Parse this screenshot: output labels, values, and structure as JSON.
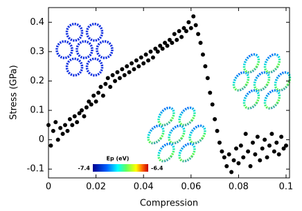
{
  "chart_data": {
    "type": "scatter",
    "x_label": "Compression",
    "y_label": "Stress (GPa)",
    "xlim": [
      0,
      0.1
    ],
    "ylim": [
      -0.13,
      0.45
    ],
    "xticks": [
      0,
      0.02,
      0.04,
      0.06,
      0.08,
      0.1
    ],
    "yticks": [
      -0.1,
      0,
      0.1,
      0.2,
      0.3,
      0.4
    ],
    "color": "#000000",
    "colorbar": {
      "label": "Ep (eV)",
      "min": -7.4,
      "max": -6.4
    },
    "x": [
      0,
      0.001,
      0.002,
      0.003,
      0.004,
      0.005,
      0.006,
      0.007,
      0.008,
      0.009,
      0.01,
      0.011,
      0.012,
      0.013,
      0.014,
      0.015,
      0.016,
      0.017,
      0.018,
      0.019,
      0.02,
      0.021,
      0.022,
      0.023,
      0.024,
      0.025,
      0.026,
      0.027,
      0.028,
      0.029,
      0.03,
      0.031,
      0.032,
      0.033,
      0.034,
      0.035,
      0.036,
      0.037,
      0.038,
      0.039,
      0.04,
      0.041,
      0.042,
      0.043,
      0.044,
      0.045,
      0.046,
      0.047,
      0.048,
      0.049,
      0.05,
      0.051,
      0.052,
      0.053,
      0.054,
      0.055,
      0.056,
      0.057,
      0.058,
      0.059,
      0.06,
      0.061,
      0.062,
      0.063,
      0.064,
      0.065,
      0.066,
      0.067,
      0.068,
      0.069,
      0.07,
      0.071,
      0.072,
      0.073,
      0.074,
      0.075,
      0.076,
      0.077,
      0.078,
      0.079,
      0.08,
      0.081,
      0.082,
      0.083,
      0.084,
      0.085,
      0.086,
      0.087,
      0.088,
      0.089,
      0.09,
      0.091,
      0.092,
      0.093,
      0.094,
      0.095,
      0.096,
      0.097,
      0.098,
      0.099,
      0.1
    ],
    "y": [
      0.05,
      -0.02,
      0.03,
      0.06,
      0.0,
      0.04,
      0.02,
      0.05,
      0.03,
      0.07,
      0.05,
      0.08,
      0.06,
      0.09,
      0.1,
      0.08,
      0.11,
      0.13,
      0.12,
      0.15,
      0.13,
      0.16,
      0.18,
      0.15,
      0.19,
      0.21,
      0.18,
      0.22,
      0.2,
      0.23,
      0.21,
      0.24,
      0.22,
      0.25,
      0.23,
      0.26,
      0.24,
      0.27,
      0.25,
      0.28,
      0.26,
      0.29,
      0.27,
      0.3,
      0.28,
      0.31,
      0.3,
      0.32,
      0.31,
      0.33,
      0.32,
      0.34,
      0.33,
      0.36,
      0.34,
      0.37,
      0.35,
      0.38,
      0.37,
      0.4,
      0.38,
      0.42,
      0.39,
      0.36,
      0.33,
      0.29,
      0.25,
      0.21,
      0.16,
      0.12,
      0.07,
      0.03,
      -0.01,
      -0.04,
      -0.06,
      -0.09,
      -0.05,
      -0.11,
      -0.07,
      -0.03,
      -0.08,
      -0.02,
      -0.06,
      0.02,
      -0.04,
      -0.09,
      -0.01,
      -0.05,
      0.01,
      -0.07,
      -0.03,
      0.0,
      -0.06,
      -0.02,
      0.02,
      -0.04,
      -0.01,
      -0.05,
      0.01,
      -0.03,
      -0.02
    ]
  }
}
